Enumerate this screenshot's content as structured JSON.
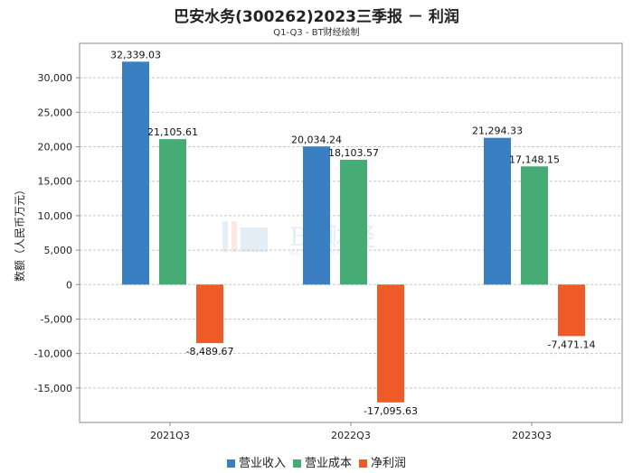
{
  "title": "巴安水务(300262)2023三季报 － 利润",
  "subtitle": "Q1-Q3 - BT财经绘制",
  "chart_data": {
    "type": "bar",
    "categories": [
      "2021Q3",
      "2022Q3",
      "2023Q3"
    ],
    "series": [
      {
        "name": "营业收入",
        "color": "#3a7fc1",
        "values": [
          32339.03,
          20034.24,
          21294.33
        ],
        "labels": [
          "32,339.03",
          "20,034.24",
          "21,294.33"
        ]
      },
      {
        "name": "营业成本",
        "color": "#46ab74",
        "values": [
          21105.61,
          18103.57,
          17148.15
        ],
        "labels": [
          "21,105.61",
          "18,103.57",
          "17,148.15"
        ]
      },
      {
        "name": "净利润",
        "color": "#ef5a29",
        "values": [
          -8489.67,
          -17095.63,
          -7471.14
        ],
        "labels": [
          "-8,489.67",
          "-17,095.63",
          "-7,471.14"
        ]
      }
    ],
    "ylabel": "数额（人民币万元）",
    "ylim": [
      -20000,
      35000
    ],
    "yticks": [
      30000,
      25000,
      20000,
      15000,
      10000,
      5000,
      0,
      -5000,
      -10000,
      -15000
    ],
    "ytick_labels": [
      "30,000",
      "25,000",
      "20,000",
      "15,000",
      "10,000",
      "5,000",
      "0",
      "-5,000",
      "-10,000",
      "-15,000"
    ],
    "grid": true,
    "legend_position": "bottom"
  },
  "watermark": {
    "main": "BT财经",
    "sub": "BUSINESSTIMES"
  }
}
